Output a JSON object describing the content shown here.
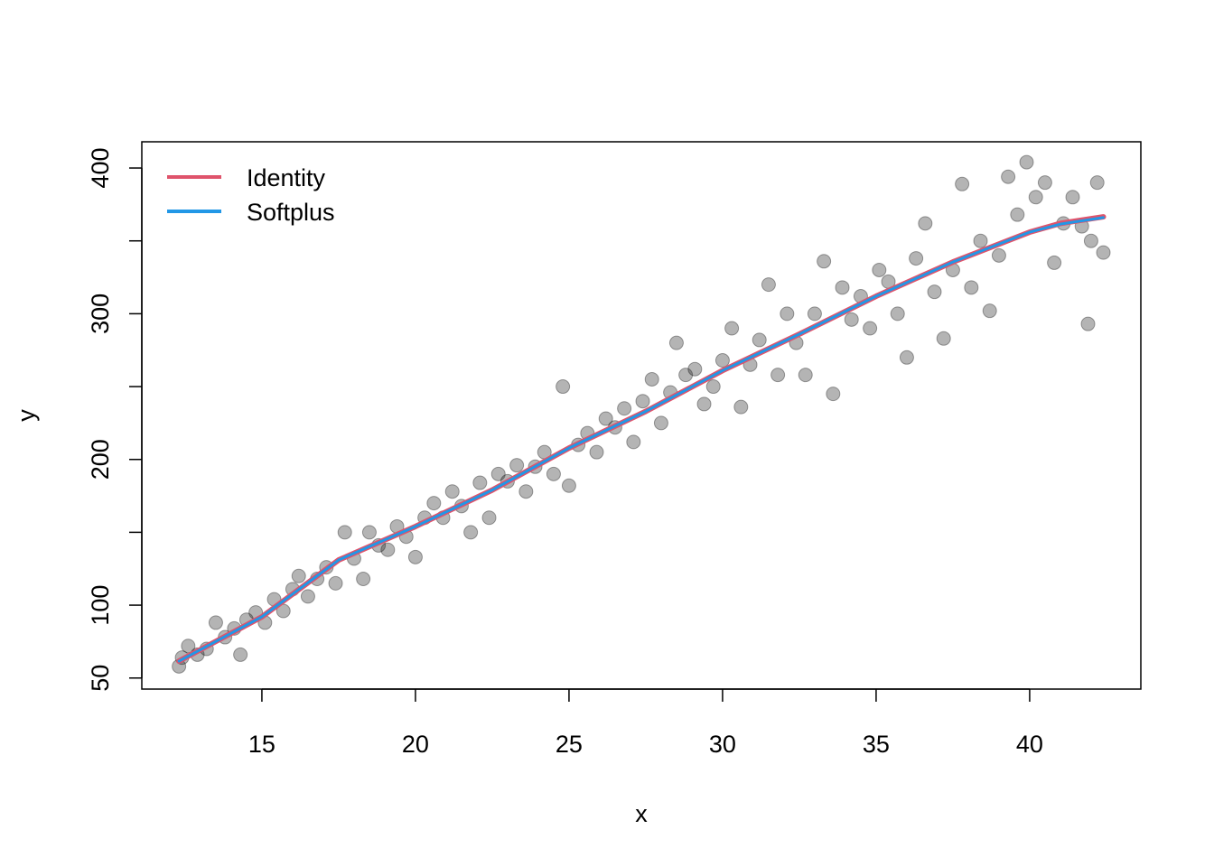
{
  "chart_data": {
    "type": "scatter",
    "xlabel": "x",
    "ylabel": "y",
    "xlim": [
      11.09,
      43.62
    ],
    "ylim": [
      42.4,
      418
    ],
    "xticks": [
      15,
      20,
      25,
      30,
      35,
      40
    ],
    "yticks": [
      50,
      100,
      {
        "value": 150,
        "label": null
      },
      200,
      {
        "value": 250,
        "label": null
      },
      300,
      {
        "value": 350,
        "label": null
      },
      400
    ],
    "legend": "topleft",
    "points": {
      "color": "rgba(40,40,40,0.35)",
      "x": [
        12.3,
        12.4,
        12.6,
        12.9,
        13.2,
        13.5,
        13.8,
        14.1,
        14.3,
        14.5,
        14.8,
        15.1,
        15.4,
        15.7,
        16.0,
        16.2,
        16.5,
        16.8,
        17.1,
        17.4,
        17.7,
        18.0,
        18.3,
        18.5,
        18.8,
        19.1,
        19.4,
        19.7,
        20.0,
        20.3,
        20.6,
        20.9,
        21.2,
        21.5,
        21.8,
        22.1,
        22.4,
        22.7,
        23.0,
        23.3,
        23.6,
        23.9,
        24.2,
        24.5,
        24.8,
        25.0,
        25.3,
        25.6,
        25.9,
        26.2,
        26.5,
        26.8,
        27.1,
        27.4,
        27.7,
        28.0,
        28.3,
        28.5,
        28.8,
        29.1,
        29.4,
        29.7,
        30.0,
        30.3,
        30.6,
        30.9,
        31.2,
        31.5,
        31.8,
        32.1,
        32.4,
        32.7,
        33.0,
        33.3,
        33.6,
        33.9,
        34.2,
        34.5,
        34.8,
        35.1,
        35.4,
        35.7,
        36.0,
        36.3,
        36.6,
        36.9,
        37.2,
        37.5,
        37.8,
        38.1,
        38.4,
        38.7,
        39.0,
        39.3,
        39.6,
        39.9,
        40.2,
        40.5,
        40.8,
        41.1,
        41.4,
        41.7,
        41.9,
        42.0,
        42.2,
        42.4
      ],
      "values": [
        58,
        64,
        72,
        66,
        70,
        88,
        78,
        84,
        66,
        90,
        95,
        88,
        104,
        96,
        111,
        120,
        106,
        118,
        126,
        115,
        150,
        132,
        118,
        150,
        141,
        138,
        154,
        147,
        133,
        160,
        170,
        160,
        178,
        168,
        150,
        184,
        160,
        190,
        185,
        196,
        178,
        195,
        205,
        190,
        250,
        182,
        210,
        218,
        205,
        228,
        222,
        235,
        212,
        240,
        255,
        225,
        246,
        280,
        258,
        262,
        238,
        250,
        268,
        290,
        236,
        265,
        282,
        320,
        258,
        300,
        280,
        258,
        300,
        336,
        245,
        318,
        296,
        312,
        290,
        330,
        322,
        300,
        270,
        338,
        362,
        315,
        283,
        330,
        389,
        318,
        350,
        302,
        340,
        394,
        368,
        404,
        380,
        390,
        335,
        362,
        380,
        360,
        293,
        350,
        390,
        342
      ]
    },
    "line_x": [
      12.3,
      15,
      17.5,
      20,
      22.5,
      25,
      27.5,
      30,
      32.5,
      35,
      37.5,
      40,
      41,
      42.4
    ],
    "series": [
      {
        "name": "Identity",
        "color": "#DF536B",
        "values": [
          61.6,
          92,
          131,
          154,
          179,
          207.8,
          233,
          261,
          286,
          312,
          335.5,
          356,
          362,
          366.5
        ]
      },
      {
        "name": "Softplus",
        "color": "#2297E6",
        "values": [
          61.6,
          92,
          131,
          154,
          179,
          207.8,
          233,
          261,
          286,
          312,
          335.5,
          356,
          361.5,
          366
        ]
      }
    ]
  }
}
